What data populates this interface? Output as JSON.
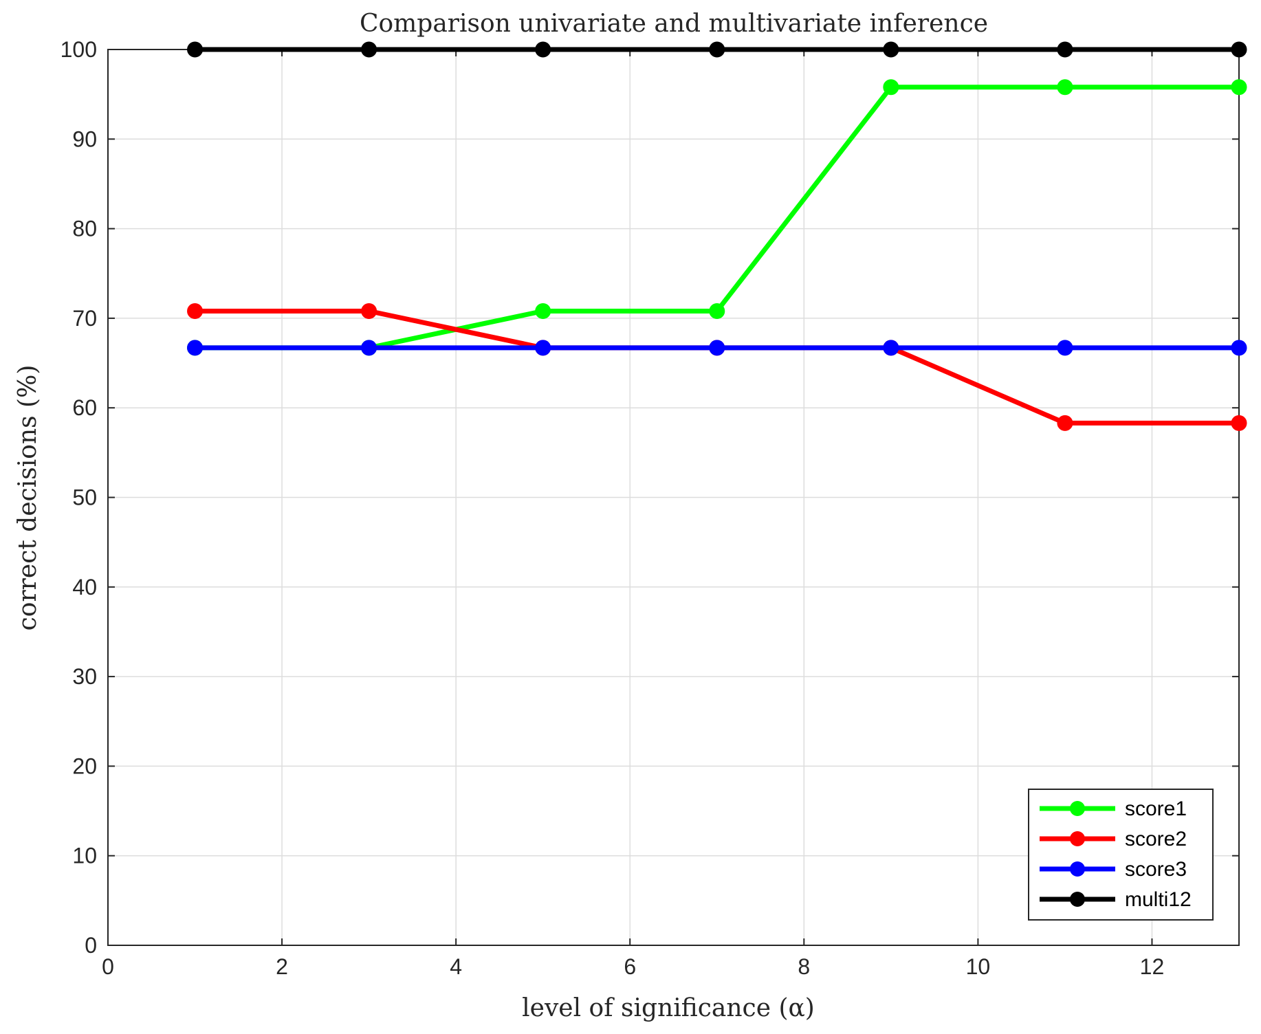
{
  "chart_data": {
    "type": "line",
    "title": "Comparison univariate and multivariate inference",
    "xlabel": "level of significance (α)",
    "ylabel": "correct decisions (%)",
    "xlim": [
      0,
      13
    ],
    "ylim": [
      0,
      100
    ],
    "xticks": [
      0,
      2,
      4,
      6,
      8,
      10,
      12
    ],
    "yticks": [
      0,
      10,
      20,
      30,
      40,
      50,
      60,
      70,
      80,
      90,
      100
    ],
    "grid": true,
    "legend_position": "bottom-right",
    "x": [
      1,
      3,
      5,
      7,
      9,
      11,
      13
    ],
    "series": [
      {
        "name": "score1",
        "color": "#00ff00",
        "values": [
          66.7,
          66.7,
          70.8,
          70.8,
          95.8,
          95.8,
          95.8
        ]
      },
      {
        "name": "score2",
        "color": "#ff0000",
        "values": [
          70.8,
          70.8,
          66.7,
          66.7,
          66.7,
          58.3,
          58.3
        ]
      },
      {
        "name": "score3",
        "color": "#0000ff",
        "values": [
          66.7,
          66.7,
          66.7,
          66.7,
          66.7,
          66.7,
          66.7
        ]
      },
      {
        "name": "multi12",
        "color": "#000000",
        "values": [
          100,
          100,
          100,
          100,
          100,
          100,
          100
        ]
      }
    ]
  }
}
